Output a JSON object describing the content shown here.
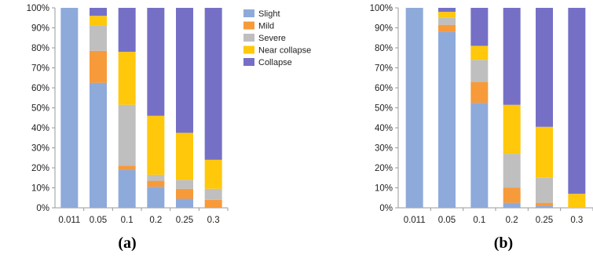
{
  "chart_data": [
    {
      "type": "bar",
      "stacked": true,
      "panel_label": "(a)",
      "categories": [
        "0.011",
        "0.05",
        "0.1",
        "0.2",
        "0.25",
        "0.3"
      ],
      "ylim": [
        0,
        100
      ],
      "yticks": [
        "0%",
        "10%",
        "20%",
        "30%",
        "40%",
        "50%",
        "60%",
        "70%",
        "80%",
        "90%",
        "100%"
      ],
      "legend_position": "top-right",
      "series": [
        {
          "name": "Slight",
          "color": "#8eaadb",
          "values": [
            100,
            62.5,
            19,
            10.5,
            4.5,
            0
          ]
        },
        {
          "name": "Mild",
          "color": "#f79a3a",
          "values": [
            0,
            16,
            2,
            3,
            5,
            4
          ]
        },
        {
          "name": "Severe",
          "color": "#bfbfbf",
          "values": [
            0,
            12.5,
            30.5,
            3,
            4.5,
            5.5
          ]
        },
        {
          "name": "Near collapse",
          "color": "#ffc80a",
          "values": [
            0,
            5,
            26.5,
            29.5,
            23.5,
            14.5
          ]
        },
        {
          "name": "Collapse",
          "color": "#7570c6",
          "values": [
            0,
            4,
            22,
            54,
            62.5,
            76
          ]
        }
      ]
    },
    {
      "type": "bar",
      "stacked": true,
      "panel_label": "(b)",
      "categories": [
        "0.011",
        "0.05",
        "0.1",
        "0.2",
        "0.25",
        "0.3"
      ],
      "ylim": [
        0,
        100
      ],
      "yticks": [
        "0%",
        "10%",
        "20%",
        "30%",
        "40%",
        "50%",
        "60%",
        "70%",
        "80%",
        "90%",
        "100%"
      ],
      "series": [
        {
          "name": "Slight",
          "color": "#8eaadb",
          "values": [
            100,
            88,
            52.5,
            2.5,
            1,
            0
          ]
        },
        {
          "name": "Mild",
          "color": "#f79a3a",
          "values": [
            0,
            3.5,
            10.5,
            7.5,
            1.5,
            0
          ]
        },
        {
          "name": "Severe",
          "color": "#bfbfbf",
          "values": [
            0,
            3.5,
            11,
            17,
            12.5,
            0
          ]
        },
        {
          "name": "Near collapse",
          "color": "#ffc80a",
          "values": [
            0,
            3,
            7,
            24.5,
            25.5,
            7
          ]
        },
        {
          "name": "Collapse",
          "color": "#7570c6",
          "values": [
            0,
            2,
            19,
            48.5,
            59.5,
            93
          ]
        }
      ]
    }
  ]
}
